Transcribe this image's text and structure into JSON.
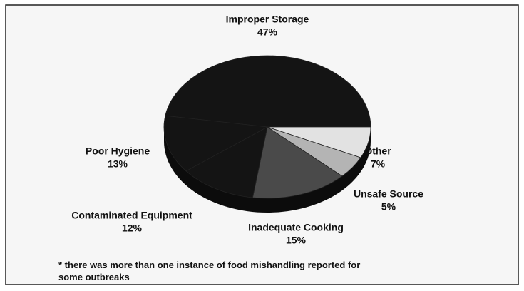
{
  "chart_data": {
    "type": "pie",
    "categories": [
      "Improper Storage",
      "Other",
      "Unsafe Source",
      "Inadequate Cooking",
      "Contaminated Equipment",
      "Poor Hygiene"
    ],
    "values": [
      47,
      7,
      5,
      15,
      12,
      13
    ],
    "value_labels": [
      "47%",
      "7%",
      "5%",
      "15%",
      "12%",
      "13%"
    ],
    "colors": [
      "#141414",
      "#e2e2e2",
      "#b4b4b4",
      "#4a4a4a",
      "#141414",
      "#141414"
    ],
    "footnote": "* there was more than one instance of food mishandling reported for some outbreaks"
  }
}
